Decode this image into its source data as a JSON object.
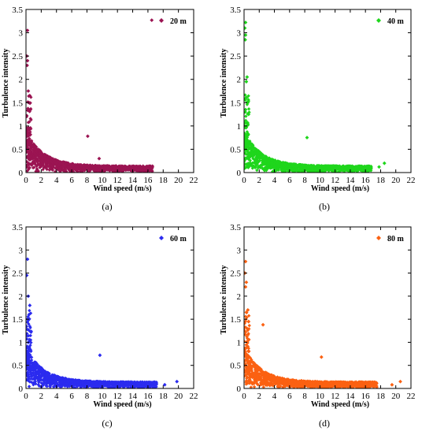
{
  "chart_data": [
    {
      "type": "scatter",
      "caption": "(a)",
      "series": [
        {
          "name": "20 m",
          "color": "#9b1452",
          "marker": "diamond"
        }
      ],
      "xlabel": "Wind speed  (m/s)",
      "ylabel": "Turbulence intensity",
      "xlim": [
        0,
        22
      ],
      "ylim": [
        0,
        3.5
      ],
      "xticks": [
        "0",
        "2",
        "4",
        "6",
        "8",
        "10",
        "12",
        "14",
        "16",
        "18",
        "20",
        "22"
      ],
      "yticks": [
        "0",
        "0.5",
        "1",
        "1.5",
        "2",
        "2.5",
        "3",
        "3.5"
      ],
      "max_wind_speed": 16.6,
      "outliers": [
        [
          0.2,
          3.05
        ],
        [
          0.1,
          2.5
        ],
        [
          0.2,
          2.4
        ],
        [
          0.15,
          2.3
        ],
        [
          0.3,
          1.75
        ],
        [
          0.5,
          1.65
        ],
        [
          0.4,
          1.5
        ],
        [
          0.3,
          1.35
        ],
        [
          16.5,
          3.27
        ],
        [
          8.1,
          0.78
        ],
        [
          9.6,
          0.3
        ]
      ]
    },
    {
      "type": "scatter",
      "caption": "(b)",
      "series": [
        {
          "name": "40 m",
          "color": "#1fd61c",
          "marker": "diamond"
        }
      ],
      "xlabel": "Wind speed  (m/s)",
      "ylabel": "Turbulence intensity",
      "xlim": [
        0,
        22
      ],
      "ylim": [
        0,
        3.5
      ],
      "xticks": [
        "0",
        "2",
        "4",
        "6",
        "8",
        "10",
        "12",
        "14",
        "16",
        "18",
        "20",
        "22"
      ],
      "yticks": [
        "0",
        "0.5",
        "1",
        "1.5",
        "2",
        "2.5",
        "3",
        "3.5"
      ],
      "max_wind_speed": 16.8,
      "outliers": [
        [
          0.2,
          3.22
        ],
        [
          0.1,
          3.1
        ],
        [
          0.2,
          2.95
        ],
        [
          0.15,
          2.85
        ],
        [
          0.4,
          2.05
        ],
        [
          0.3,
          1.95
        ],
        [
          0.5,
          1.5
        ],
        [
          0.2,
          1.35
        ],
        [
          0.6,
          1.25
        ],
        [
          8.3,
          0.75
        ],
        [
          18.5,
          0.2
        ],
        [
          17.8,
          0.12
        ]
      ]
    },
    {
      "type": "scatter",
      "caption": "(c)",
      "series": [
        {
          "name": "60 m",
          "color": "#2b2bef",
          "marker": "diamond"
        }
      ],
      "xlabel": "Wind speed  (m/s)",
      "ylabel": "Turbulence intensity",
      "xlim": [
        0,
        22
      ],
      "ylim": [
        0,
        3.5
      ],
      "xticks": [
        "0",
        "2",
        "4",
        "6",
        "8",
        "10",
        "12",
        "14",
        "16",
        "18",
        "20",
        "22"
      ],
      "yticks": [
        "0",
        "0.5",
        "1",
        "1.5",
        "2",
        "2.5",
        "3",
        "3.5"
      ],
      "max_wind_speed": 17.2,
      "outliers": [
        [
          0.2,
          2.8
        ],
        [
          0.1,
          2.45
        ],
        [
          0.3,
          2.0
        ],
        [
          0.5,
          1.8
        ],
        [
          0.4,
          1.6
        ],
        [
          0.2,
          1.5
        ],
        [
          0.6,
          1.05
        ],
        [
          9.7,
          0.72
        ],
        [
          19.8,
          0.15
        ],
        [
          18.2,
          0.08
        ]
      ]
    },
    {
      "type": "scatter",
      "caption": "(d)",
      "series": [
        {
          "name": "80 m",
          "color": "#fb6112",
          "marker": "diamond"
        }
      ],
      "xlabel": "Wind speed  (m/s)",
      "ylabel": "Turbulence intensity",
      "xlim": [
        0,
        22
      ],
      "ylim": [
        0,
        3.5
      ],
      "xticks": [
        "0",
        "2",
        "4",
        "6",
        "8",
        "10",
        "12",
        "14",
        "16",
        "18",
        "20",
        "22"
      ],
      "yticks": [
        "0",
        "0.5",
        "1",
        "1.5",
        "2",
        "2.5",
        "3",
        "3.5"
      ],
      "max_wind_speed": 17.5,
      "outliers": [
        [
          0.2,
          2.75
        ],
        [
          0.1,
          2.5
        ],
        [
          0.3,
          2.3
        ],
        [
          0.2,
          2.2
        ],
        [
          0.5,
          1.7
        ],
        [
          0.3,
          1.65
        ],
        [
          0.6,
          1.45
        ],
        [
          0.4,
          1.3
        ],
        [
          2.5,
          1.38
        ],
        [
          10.2,
          0.68
        ],
        [
          20.6,
          0.15
        ],
        [
          19.5,
          0.08
        ]
      ]
    }
  ]
}
